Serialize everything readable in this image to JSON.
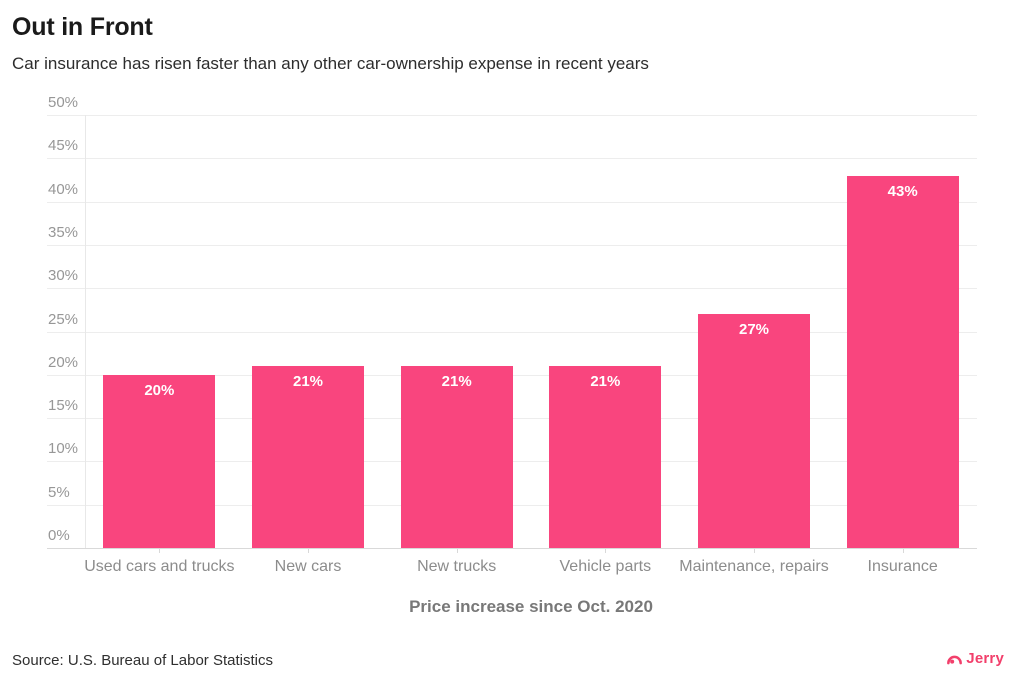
{
  "header": {
    "title": "Out in Front",
    "subtitle": "Car insurance has risen faster than any other car-ownership expense in recent years"
  },
  "chart_data": {
    "type": "bar",
    "title": "Out in Front",
    "subtitle": "Car insurance has risen faster than any other car-ownership expense in recent years",
    "categories": [
      "Used cars and trucks",
      "New cars",
      "New trucks",
      "Vehicle parts",
      "Maintenance, repairs",
      "Insurance"
    ],
    "values": [
      20,
      21,
      21,
      21,
      27,
      43
    ],
    "value_labels": [
      "20%",
      "21%",
      "21%",
      "21%",
      "27%",
      "43%"
    ],
    "xlabel": "Price increase since Oct. 2020",
    "ylabel": "",
    "ylim": [
      0,
      50
    ],
    "ytick_step": 5,
    "ytick_labels": [
      "0%",
      "5%",
      "10%",
      "15%",
      "20%",
      "25%",
      "30%",
      "35%",
      "40%",
      "45%",
      "50%"
    ],
    "grid": "horizontal",
    "legend": "none",
    "bar_color": "#F9457E",
    "value_label_color": "#ffffff"
  },
  "footer": {
    "source": "Source: U.S. Bureau of Labor Statistics",
    "brand": "Jerry",
    "brand_color": "#F23F6B"
  }
}
